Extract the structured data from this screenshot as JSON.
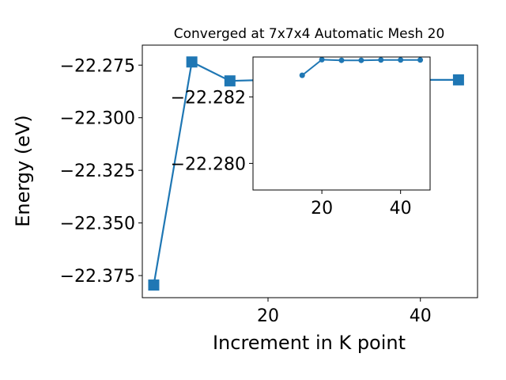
{
  "chart_data": [
    {
      "type": "line",
      "title": "Converged at 7x7x4 Automatic Mesh 20",
      "xlabel": "Increment in K point",
      "ylabel": "Energy (eV)",
      "xlim": [
        3.5,
        47.5
      ],
      "ylim": [
        -22.3855,
        -22.2655
      ],
      "xticks": [
        20,
        40
      ],
      "xtick_labels": [
        "20",
        "40"
      ],
      "yticks": [
        -22.375,
        -22.35,
        -22.325,
        -22.3,
        -22.275
      ],
      "ytick_labels": [
        "−22.375",
        "−22.350",
        "−22.325",
        "−22.300",
        "−22.275"
      ],
      "marker": "square",
      "color": "#1f77b4",
      "grid": false,
      "series": [
        {
          "x": [
            5,
            10,
            15,
            20,
            25,
            30,
            35,
            40,
            45
          ],
          "y": [
            -22.3795,
            -22.2735,
            -22.2825,
            -22.282,
            -22.282,
            -22.282,
            -22.282,
            -22.282,
            -22.282
          ]
        }
      ]
    },
    {
      "type": "line",
      "title": "",
      "xlabel": "",
      "ylabel": "",
      "xlim": [
        2.5,
        47.5
      ],
      "ylim": [
        -22.2792,
        -22.2832
      ],
      "xticks": [
        20,
        40
      ],
      "xtick_labels": [
        "20",
        "40"
      ],
      "yticks": [
        -22.282,
        -22.28
      ],
      "ytick_labels": [
        "−22.282",
        "−22.280"
      ],
      "marker": "circle",
      "color": "#1f77b4",
      "grid": false,
      "series": [
        {
          "x": [
            15,
            20,
            25,
            30,
            35,
            40,
            45
          ],
          "y": [
            -22.28265,
            -22.28312,
            -22.2831,
            -22.2831,
            -22.28311,
            -22.28311,
            -22.28311
          ]
        }
      ]
    }
  ]
}
